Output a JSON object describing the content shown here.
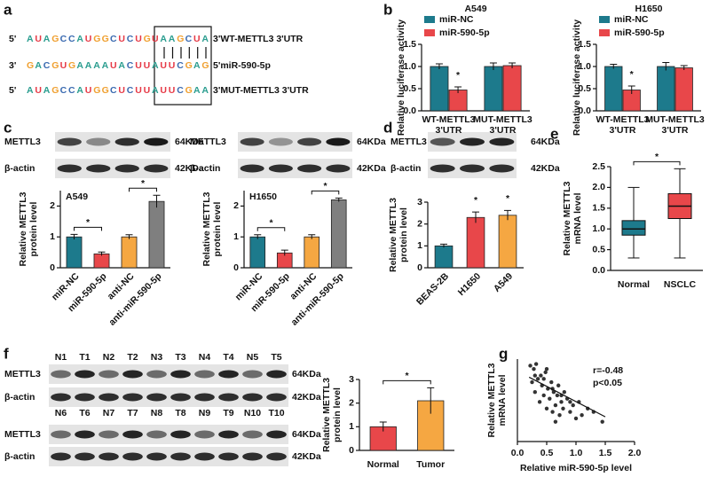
{
  "panel_labels": [
    "a",
    "b",
    "c",
    "d",
    "e",
    "f",
    "g"
  ],
  "sequences": [
    {
      "prefix": "5'",
      "seq": "AUAGCCAUGGCUCUGUAAGCUA",
      "suffix": "3'WT-METTL3 3'UTR"
    },
    {
      "prefix": "3'",
      "seq": "GACGUGAAAAUACUUAUUCGAG",
      "suffix": "5'miR-590-5p"
    },
    {
      "prefix": "5'",
      "seq": "AUAGCCAUGGCUCUUAUUCGAA",
      "suffix": "3'MUT-METTL3 3'UTR"
    }
  ],
  "blots": [
    {
      "rows": [
        "METTL3",
        "β-actin"
      ],
      "sizes": [
        "64KDa",
        "42KDa"
      ]
    },
    {
      "rows": [
        "METTL3",
        "β-actin"
      ],
      "sizes": [
        "64KDa",
        "42KDa"
      ]
    },
    {
      "rows": [
        "METTL3",
        "β-actin"
      ],
      "sizes": [
        "64KDa",
        "42KDa"
      ]
    },
    {
      "lanes": [
        "N1",
        "T1",
        "N2",
        "T2",
        "N3",
        "T3",
        "N4",
        "T4",
        "N5",
        "T5"
      ],
      "rows": [
        "METTL3",
        "β-actin"
      ],
      "sizes": [
        "64KDa",
        "42KDa"
      ]
    },
    {
      "lanes": [
        "N6",
        "T6",
        "N7",
        "T7",
        "N8",
        "T8",
        "N9",
        "T9",
        "N10",
        "T10"
      ],
      "rows": [
        "METTL3",
        "β-actin"
      ],
      "sizes": [
        "64KDa",
        "42KDa"
      ]
    }
  ],
  "chart_data": [
    {
      "type": "bar",
      "title": "A549",
      "ylabel": "Relative luciferase activity",
      "categories": [
        "WT-METTL3\n3'UTR",
        "MUT-METTL3\n3'UTR"
      ],
      "series": [
        {
          "name": "miR-NC",
          "color": "#1d7a8c",
          "values": [
            1.0,
            1.0
          ],
          "errors": [
            0.06,
            0.08
          ]
        },
        {
          "name": "miR-590-5p",
          "color": "#e8474a",
          "values": [
            0.47,
            1.02
          ],
          "errors": [
            0.07,
            0.06
          ]
        }
      ],
      "ylim": [
        0,
        1.5
      ],
      "yticks": [
        {
          "value": 0,
          "label": "0.0"
        },
        0.5,
        {
          "value": 1,
          "label": "1.0"
        },
        1.5
      ],
      "annotations": [
        "*"
      ]
    },
    {
      "type": "bar",
      "title": "H1650",
      "ylabel": "Relative luciferase activity",
      "categories": [
        "WT-METTL3\n3'UTR",
        "MUT-METTL3\n3'UTR"
      ],
      "series": [
        {
          "name": "miR-NC",
          "color": "#1d7a8c",
          "values": [
            1.0,
            1.0
          ],
          "errors": [
            0.05,
            0.09
          ]
        },
        {
          "name": "miR-590-5p",
          "color": "#e8474a",
          "values": [
            0.47,
            0.97
          ],
          "errors": [
            0.09,
            0.05
          ]
        }
      ],
      "ylim": [
        0,
        1.5
      ],
      "yticks": [
        {
          "value": 0,
          "label": "0.0"
        },
        0.5,
        {
          "value": 1,
          "label": "1.0"
        },
        1.5
      ],
      "annotations": [
        "*"
      ]
    },
    {
      "type": "bar",
      "title": "A549",
      "ylabel": "Relative METTL3\nprotein level",
      "categories": [
        "miR-NC",
        "miR-590-5p",
        "anti-NC",
        "anti-miR-590-5p"
      ],
      "values": [
        1.0,
        0.45,
        1.0,
        2.15
      ],
      "errors": [
        0.08,
        0.06,
        0.07,
        0.2
      ],
      "colors": [
        "#1d7a8c",
        "#e8474a",
        "#f5a742",
        "#7f7f7f"
      ],
      "ylim": [
        0,
        2.5
      ],
      "yticks": [
        0,
        1,
        2
      ],
      "annotations": [
        "*",
        "*"
      ]
    },
    {
      "type": "bar",
      "title": "H1650",
      "ylabel": "Relative METTL3\nprotein level",
      "categories": [
        "miR-NC",
        "miR-590-5p",
        "anti-NC",
        "anti-miR-590-5p"
      ],
      "values": [
        1.0,
        0.48,
        1.0,
        2.2
      ],
      "errors": [
        0.07,
        0.09,
        0.07,
        0.06
      ],
      "colors": [
        "#1d7a8c",
        "#e8474a",
        "#f5a742",
        "#7f7f7f"
      ],
      "ylim": [
        0,
        2.5
      ],
      "yticks": [
        0,
        1,
        2
      ],
      "annotations": [
        "*",
        "*"
      ]
    },
    {
      "type": "bar",
      "ylabel": "Relative METTL3\nprotein level",
      "categories": [
        "BEAS-2B",
        "H1650",
        "A549"
      ],
      "values": [
        1.0,
        2.3,
        2.4
      ],
      "errors": [
        0.08,
        0.25,
        0.22
      ],
      "colors": [
        "#1d7a8c",
        "#e8474a",
        "#f5a742"
      ],
      "ylim": [
        0,
        3
      ],
      "yticks": [
        0,
        1,
        2,
        3
      ],
      "annotations": [
        "*",
        "*"
      ]
    },
    {
      "type": "box",
      "ylabel": "Relative METTL3\nmRNA level",
      "categories": [
        "Normal",
        "NSCLC"
      ],
      "boxes": [
        {
          "min": 0.3,
          "q1": 0.85,
          "median": 1.0,
          "q3": 1.2,
          "max": 2.0
        },
        {
          "min": 0.3,
          "q1": 1.25,
          "median": 1.55,
          "q3": 1.85,
          "max": 2.45
        }
      ],
      "colors": [
        "#1d7a8c",
        "#e8474a"
      ],
      "ylim": [
        0,
        2.5
      ],
      "yticks": [
        {
          "value": 0,
          "label": "0.0"
        },
        0.5,
        {
          "value": 1,
          "label": "1.0"
        },
        1.5,
        {
          "value": 2,
          "label": "2.0"
        },
        2.5
      ],
      "annotations": [
        "*"
      ]
    },
    {
      "type": "bar",
      "ylabel": "Relative METTL3\nprotein level",
      "categories": [
        "Normal",
        "Tumor"
      ],
      "values": [
        1.0,
        2.1
      ],
      "errors": [
        0.2,
        0.55
      ],
      "colors": [
        "#e8474a",
        "#f5a742"
      ],
      "ylim": [
        0,
        3
      ],
      "yticks": [
        0,
        1,
        2,
        3
      ],
      "annotations": [
        "*"
      ]
    },
    {
      "type": "scatter",
      "ylabel": "Relative METTL3\nmRNA level",
      "xlabel": "Relative miR-590-5p level",
      "x": [
        0.22,
        0.25,
        0.28,
        0.3,
        0.32,
        0.35,
        0.38,
        0.4,
        0.42,
        0.45,
        0.48,
        0.5,
        0.52,
        0.55,
        0.58,
        0.6,
        0.62,
        0.65,
        0.68,
        0.7,
        0.72,
        0.75,
        0.78,
        0.8,
        0.85,
        0.9,
        0.95,
        1.0,
        1.05,
        1.1,
        1.2,
        1.3,
        1.45,
        0.3,
        0.45,
        0.6,
        0.75,
        0.9,
        0.5,
        0.65
      ],
      "y": [
        2.3,
        1.8,
        2.2,
        1.5,
        2.35,
        1.9,
        1.2,
        2.0,
        1.7,
        1.4,
        2.1,
        1.0,
        1.6,
        1.3,
        1.8,
        0.9,
        1.5,
        1.1,
        1.4,
        1.7,
        0.8,
        1.2,
        1.0,
        1.5,
        1.3,
        0.9,
        1.1,
        0.7,
        1.2,
        0.8,
        1.0,
        0.9,
        0.6,
        2.0,
        1.9,
        1.6,
        1.4,
        1.2,
        2.2,
        0.6
      ],
      "color": "#333333",
      "trendline": {
        "x": [
          0.2,
          1.5
        ],
        "y": [
          1.95,
          0.75
        ]
      },
      "xlim": [
        0,
        2
      ],
      "xticks": [
        {
          "value": 0,
          "label": "0.0"
        },
        0.5,
        {
          "value": 1,
          "label": "1.0"
        },
        1.5,
        {
          "value": 2,
          "label": "2.0"
        }
      ],
      "ylim": [
        0,
        2.5
      ],
      "annotations": [
        "r=-0.48",
        "p<0.05"
      ]
    }
  ]
}
